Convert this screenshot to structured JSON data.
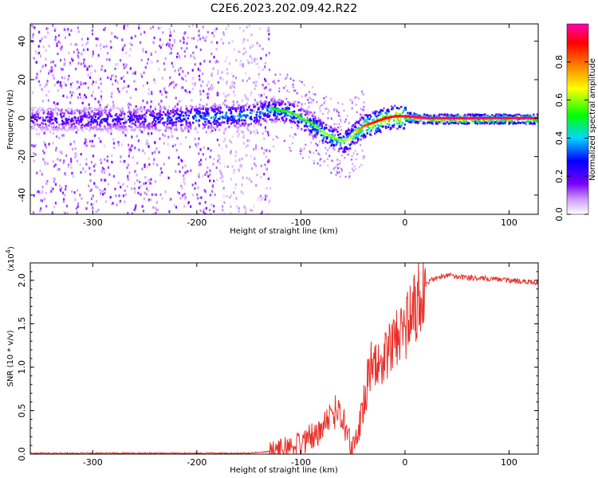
{
  "title": "C2E6.2023.202.09.42.R22",
  "chart_data": [
    {
      "type": "heatmap",
      "xlabel": "Height of straight line (km)",
      "ylabel": "Frequency (Hz)",
      "xlim": [
        -360,
        128
      ],
      "ylim": [
        -50,
        49
      ],
      "xticks": [
        -300,
        -200,
        -100,
        0,
        100
      ],
      "yticks": [
        -40,
        -20,
        0,
        20,
        40
      ],
      "colorbar": {
        "label": "Normalized spectral amplitude",
        "range": [
          0.0,
          1.0
        ],
        "ticks": [
          0.0,
          0.2,
          0.4,
          0.6,
          0.8
        ],
        "colors": [
          "#ffffff",
          "#7a00ff",
          "#0000ff",
          "#00e5ff",
          "#00ff00",
          "#ffff00",
          "#ff8000",
          "#ff0000",
          "#ff00b0"
        ]
      },
      "ridge": {
        "x": [
          -360,
          -300,
          -250,
          -200,
          -150,
          -130,
          -110,
          -100,
          -90,
          -80,
          -70,
          -60,
          -55,
          -50,
          -45,
          -40,
          -30,
          -20,
          -10,
          0,
          20,
          60,
          100,
          128
        ],
        "frequency": [
          0,
          0,
          0,
          1,
          2,
          5,
          3,
          0,
          -3,
          -7,
          -10,
          -12,
          -11,
          -8,
          -6,
          -4,
          -2,
          0,
          1,
          1,
          0,
          0,
          0,
          0
        ],
        "amplitude": [
          0.25,
          0.3,
          0.3,
          0.45,
          0.45,
          0.45,
          0.5,
          0.5,
          0.5,
          0.55,
          0.55,
          0.55,
          0.6,
          0.6,
          0.7,
          0.8,
          0.85,
          0.85,
          0.88,
          0.9,
          0.92,
          0.92,
          0.92,
          0.92
        ]
      }
    },
    {
      "type": "line",
      "xlabel": "Height of straight line (km)",
      "ylabel": "SNR (10 * v/v)",
      "scale_label": "(x10",
      "scale_exponent": "4",
      "scale_close": ")",
      "xlim": [
        -360,
        128
      ],
      "ylim": [
        0.0,
        2.2
      ],
      "xticks": [
        -300,
        -200,
        -100,
        0,
        100
      ],
      "yticks": [
        0.0,
        0.5,
        1.0,
        1.5,
        2.0
      ],
      "ytick_labels": [
        "0.0",
        "0.5",
        "1.0",
        "1.5",
        "2.0"
      ],
      "color": "#e8312b",
      "series": [
        {
          "name": "SNR",
          "x": [
            -360,
            -300,
            -200,
            -150,
            -130,
            -120,
            -110,
            -100,
            -90,
            -80,
            -70,
            -65,
            -60,
            -55,
            -50,
            -45,
            -40,
            -35,
            -30,
            -25,
            -20,
            -15,
            -10,
            -5,
            0,
            5,
            10,
            15,
            20,
            25,
            30,
            35,
            40,
            45,
            50,
            60,
            70,
            80,
            90,
            100,
            110,
            120,
            128
          ],
          "values": [
            0.01,
            0.01,
            0.01,
            0.01,
            0.03,
            0.05,
            0.08,
            0.12,
            0.2,
            0.3,
            0.45,
            0.55,
            0.4,
            0.2,
            0.1,
            0.25,
            0.55,
            0.9,
            1.1,
            1.0,
            1.05,
            1.2,
            1.3,
            1.4,
            1.45,
            1.55,
            1.7,
            1.85,
            1.95,
            2.0,
            2.03,
            2.05,
            2.06,
            2.05,
            2.04,
            2.03,
            2.02,
            2.02,
            2.01,
            2.0,
            1.99,
            1.98,
            1.97
          ]
        }
      ]
    }
  ]
}
